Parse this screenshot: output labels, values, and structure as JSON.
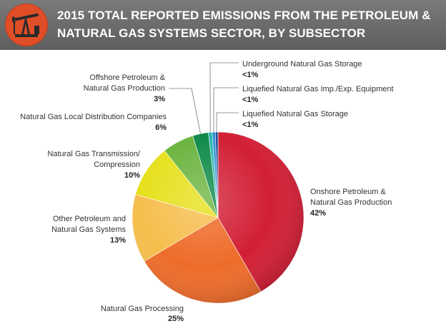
{
  "header": {
    "title_line1": "2015 TOTAL REPORTED EMISSIONS FROM THE PETROLEUM &",
    "title_line2": "NATURAL GAS SYSTEMS SECTOR, BY SUBSECTOR",
    "logo_icon": "oil-pump-jack-icon"
  },
  "chart_data": {
    "type": "pie",
    "title": "2015 TOTAL REPORTED EMISSIONS FROM THE PETROLEUM & NATURAL GAS SYSTEMS SECTOR, BY SUBSECTOR",
    "legend": "none (callout labels)",
    "slices": [
      {
        "label": "Onshore Petroleum & Natural Gas Production",
        "value": 42,
        "display": "42%",
        "color": "#d21f35"
      },
      {
        "label": "Natural Gas Processing",
        "value": 25,
        "display": "25%",
        "color": "#ee6c2a"
      },
      {
        "label": "Other Petroleum and Natural Gas Systems",
        "value": 13,
        "display": "13%",
        "color": "#f6be4d"
      },
      {
        "label": "Natural Gas Transmission/ Compression",
        "value": 10,
        "display": "10%",
        "color": "#e6e01c"
      },
      {
        "label": "Natural Gas Local Distribution Companies",
        "value": 6,
        "display": "6%",
        "color": "#6bb43f"
      },
      {
        "label": "Offshore Petroleum & Natural Gas Production",
        "value": 3,
        "display": "3%",
        "color": "#0f8a4a"
      },
      {
        "label": "Underground Natural Gas Storage",
        "value": 0.7,
        "display": "<1%",
        "color": "#27b6b0"
      },
      {
        "label": "Liquefied Natural Gas Imp./Exp. Equipment",
        "value": 0.6,
        "display": "<1%",
        "color": "#2b8fd3"
      },
      {
        "label": "Liquefied Natural Gas Storage",
        "value": 0.5,
        "display": "<1%",
        "color": "#1d4f9b"
      }
    ]
  }
}
